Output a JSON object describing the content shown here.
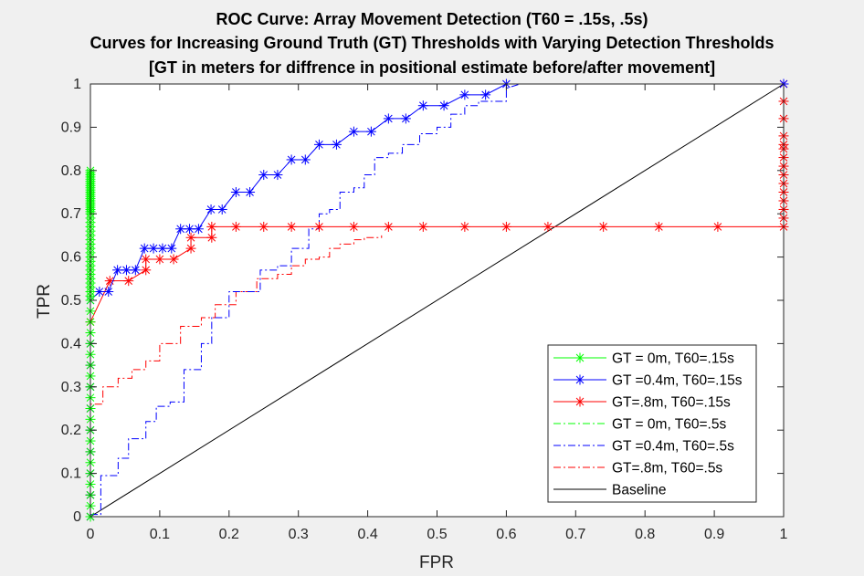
{
  "chart_data": {
    "type": "line",
    "title": [
      "ROC Curve: Array Movement Detection (T60 = .15s, .5s)",
      "Curves for Increasing Ground Truth (GT) Thresholds with Varying Detection Thresholds",
      "[GT in meters for diffrence in positional estimate before/after movement]"
    ],
    "xlabel": "FPR",
    "ylabel": "TPR",
    "xlim": [
      0,
      1
    ],
    "ylim": [
      0,
      1
    ],
    "xticks": [
      "0",
      "0.1",
      "0.2",
      "0.3",
      "0.4",
      "0.5",
      "0.6",
      "0.7",
      "0.8",
      "0.9",
      "1"
    ],
    "yticks": [
      "0",
      "0.1",
      "0.2",
      "0.3",
      "0.4",
      "0.5",
      "0.6",
      "0.7",
      "0.8",
      "0.9",
      "1"
    ],
    "grid": false,
    "legend_position": "lower-right",
    "series": [
      {
        "name": "GT = 0m, T60=.15s",
        "color": "#00ff00",
        "line_style": "solid",
        "marker": "asterisk",
        "x": [
          0,
          0,
          0,
          0,
          0,
          0,
          0,
          0,
          0,
          0,
          0,
          0,
          0,
          0,
          0,
          0,
          0,
          0,
          0,
          0,
          0,
          0,
          0,
          0,
          0,
          0,
          0,
          0,
          0,
          0,
          0,
          0,
          0,
          0,
          0,
          0,
          0,
          0,
          0,
          0,
          0,
          0,
          0,
          0,
          0,
          0,
          0,
          0,
          0,
          0,
          0,
          0,
          0,
          0,
          0,
          0,
          0,
          0,
          0,
          0,
          0
        ],
        "y": [
          0,
          0.025,
          0.05,
          0.075,
          0.1,
          0.125,
          0.15,
          0.175,
          0.2,
          0.225,
          0.25,
          0.275,
          0.3,
          0.325,
          0.35,
          0.375,
          0.4,
          0.425,
          0.45,
          0.475,
          0.5,
          0.51,
          0.52,
          0.53,
          0.54,
          0.55,
          0.56,
          0.57,
          0.58,
          0.59,
          0.6,
          0.61,
          0.62,
          0.63,
          0.64,
          0.65,
          0.66,
          0.67,
          0.68,
          0.69,
          0.7,
          0.705,
          0.71,
          0.715,
          0.72,
          0.725,
          0.73,
          0.735,
          0.74,
          0.745,
          0.75,
          0.755,
          0.76,
          0.765,
          0.77,
          0.775,
          0.78,
          0.785,
          0.79,
          0.795,
          0.8
        ]
      },
      {
        "name": "GT =0.4m, T60=.15s",
        "color": "#0000ff",
        "line_style": "solid",
        "marker": "asterisk",
        "x": [
          0,
          0,
          0,
          0,
          0,
          0,
          0,
          0,
          0,
          0,
          0.013,
          0.026,
          0.039,
          0.052,
          0.065,
          0.078,
          0.091,
          0.104,
          0.117,
          0.13,
          0.143,
          0.156,
          0.174,
          0.19,
          0.21,
          0.23,
          0.25,
          0.27,
          0.29,
          0.31,
          0.33,
          0.355,
          0.38,
          0.405,
          0.43,
          0.455,
          0.48,
          0.51,
          0.54,
          0.57,
          0.6,
          1
        ],
        "y": [
          0,
          0.05,
          0.1,
          0.15,
          0.2,
          0.25,
          0.3,
          0.35,
          0.4,
          0.5,
          0.52,
          0.52,
          0.57,
          0.57,
          0.57,
          0.62,
          0.62,
          0.62,
          0.62,
          0.665,
          0.665,
          0.665,
          0.71,
          0.71,
          0.75,
          0.75,
          0.79,
          0.79,
          0.825,
          0.825,
          0.86,
          0.86,
          0.89,
          0.89,
          0.92,
          0.92,
          0.95,
          0.95,
          0.975,
          0.975,
          1,
          1
        ]
      },
      {
        "name": "GT=.8m, T60=.15s",
        "color": "#ff0000",
        "line_style": "solid",
        "marker": "asterisk",
        "x": [
          0,
          0,
          0,
          0,
          0,
          0,
          0,
          0,
          0,
          0,
          0.028,
          0.055,
          0.08,
          0.08,
          0.1,
          0.12,
          0.145,
          0.145,
          0.175,
          0.175,
          0.21,
          0.25,
          0.29,
          0.33,
          0.38,
          0.43,
          0.48,
          0.54,
          0.6,
          0.66,
          0.74,
          0.82,
          0.905,
          1,
          1,
          1,
          1,
          1,
          1,
          1,
          1,
          1,
          1,
          1,
          1,
          1,
          1,
          1
        ],
        "y": [
          0,
          0.05,
          0.1,
          0.15,
          0.2,
          0.25,
          0.3,
          0.35,
          0.4,
          0.45,
          0.545,
          0.545,
          0.57,
          0.595,
          0.595,
          0.595,
          0.62,
          0.645,
          0.645,
          0.67,
          0.67,
          0.67,
          0.67,
          0.67,
          0.67,
          0.67,
          0.67,
          0.67,
          0.67,
          0.67,
          0.67,
          0.67,
          0.67,
          0.67,
          0.69,
          0.71,
          0.73,
          0.75,
          0.77,
          0.79,
          0.81,
          0.83,
          0.85,
          0.86,
          0.88,
          0.92,
          0.96,
          1
        ]
      },
      {
        "name": "GT = 0m, T60=.5s",
        "color": "#00ff00",
        "line_style": "dashdot",
        "marker": "none",
        "x": [
          0,
          0,
          0
        ],
        "y": [
          0,
          0.5,
          0.8
        ]
      },
      {
        "name": "GT =0.4m, T60=.5s",
        "color": "#0000ff",
        "line_style": "dashdot",
        "marker": "none",
        "x": [
          0,
          0.015,
          0.015,
          0.04,
          0.04,
          0.055,
          0.055,
          0.08,
          0.08,
          0.095,
          0.095,
          0.115,
          0.115,
          0.135,
          0.135,
          0.16,
          0.16,
          0.175,
          0.175,
          0.2,
          0.2,
          0.245,
          0.245,
          0.27,
          0.27,
          0.29,
          0.29,
          0.315,
          0.315,
          0.33,
          0.33,
          0.345,
          0.345,
          0.36,
          0.36,
          0.38,
          0.38,
          0.395,
          0.395,
          0.41,
          0.41,
          0.43,
          0.43,
          0.45,
          0.45,
          0.475,
          0.475,
          0.5,
          0.5,
          0.52,
          0.52,
          0.54,
          0.54,
          0.56,
          0.56,
          0.6,
          0.6,
          0.62,
          1
        ],
        "y": [
          0.005,
          0.005,
          0.095,
          0.095,
          0.135,
          0.135,
          0.18,
          0.18,
          0.22,
          0.22,
          0.255,
          0.255,
          0.265,
          0.265,
          0.34,
          0.34,
          0.4,
          0.4,
          0.46,
          0.46,
          0.52,
          0.52,
          0.57,
          0.57,
          0.58,
          0.58,
          0.62,
          0.62,
          0.665,
          0.665,
          0.7,
          0.7,
          0.71,
          0.71,
          0.75,
          0.75,
          0.76,
          0.76,
          0.79,
          0.79,
          0.83,
          0.83,
          0.84,
          0.84,
          0.86,
          0.86,
          0.885,
          0.885,
          0.9,
          0.9,
          0.93,
          0.93,
          0.95,
          0.95,
          0.96,
          0.96,
          0.99,
          1,
          1
        ]
      },
      {
        "name": "GT=.8m, T60=.5s",
        "color": "#ff0000",
        "line_style": "dashdot",
        "marker": "none",
        "x": [
          0,
          0,
          0.018,
          0.018,
          0.04,
          0.04,
          0.06,
          0.06,
          0.08,
          0.08,
          0.1,
          0.1,
          0.13,
          0.13,
          0.16,
          0.16,
          0.18,
          0.18,
          0.21,
          0.21,
          0.24,
          0.24,
          0.27,
          0.27,
          0.29,
          0.29,
          0.31,
          0.31,
          0.33,
          0.33,
          0.345,
          0.345,
          0.36,
          0.36,
          0.38,
          0.38,
          0.395,
          0.395,
          0.42,
          0.42
        ],
        "y": [
          0,
          0.26,
          0.26,
          0.3,
          0.3,
          0.32,
          0.32,
          0.34,
          0.34,
          0.36,
          0.36,
          0.4,
          0.4,
          0.44,
          0.44,
          0.46,
          0.46,
          0.49,
          0.49,
          0.52,
          0.52,
          0.55,
          0.55,
          0.56,
          0.56,
          0.58,
          0.58,
          0.595,
          0.595,
          0.6,
          0.6,
          0.62,
          0.62,
          0.63,
          0.63,
          0.64,
          0.64,
          0.645,
          0.645,
          0.65
        ]
      },
      {
        "name": "Baseline",
        "color": "#000000",
        "line_style": "solid",
        "marker": "none",
        "x": [
          0,
          1
        ],
        "y": [
          0,
          1
        ]
      }
    ]
  }
}
